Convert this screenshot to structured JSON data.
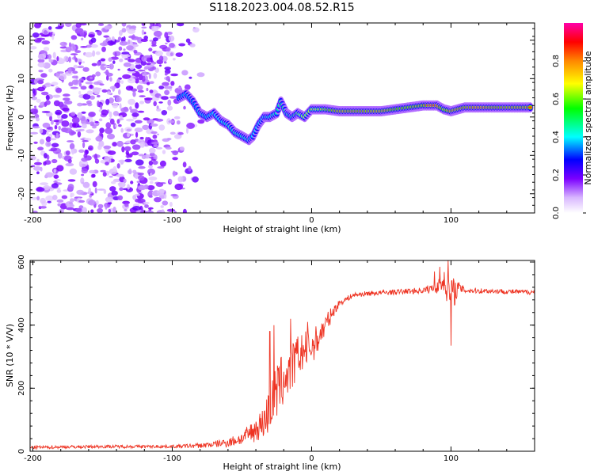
{
  "title": "S118.2023.004.08.52.R15",
  "chart_data": [
    {
      "type": "heatmap",
      "xlabel": "Height of straight line (km)",
      "ylabel": "Frequency (Hz)",
      "xlim": [
        -202,
        160
      ],
      "ylim": [
        -25,
        24.5
      ],
      "x_ticks": [
        -200,
        -100,
        0,
        100
      ],
      "y_ticks": [
        20,
        10,
        0,
        -10,
        -20
      ],
      "colorbar": {
        "label": "Normalized spectral amplitude",
        "range": [
          0,
          1
        ],
        "ticks": [
          0.0,
          0.2,
          0.4,
          0.6,
          0.8
        ],
        "colors": [
          "#ffffff",
          "#7b00ff",
          "#0000ff",
          "#00ffff",
          "#00ff00",
          "#ffff00",
          "#ff8800",
          "#ff0000",
          "#ff00aa"
        ]
      },
      "noise_region_x": [
        -200,
        -75
      ],
      "noise_amplitude_range": [
        0.05,
        0.2
      ],
      "ridge": {
        "description_values": "dominant frequency track (x km, frequency Hz, normalized amplitude)",
        "points": [
          [
            -95,
            5,
            0.3
          ],
          [
            -90,
            6,
            0.35
          ],
          [
            -85,
            4,
            0.3
          ],
          [
            -80,
            1,
            0.35
          ],
          [
            -75,
            0,
            0.35
          ],
          [
            -70,
            1,
            0.4
          ],
          [
            -65,
            -1,
            0.4
          ],
          [
            -60,
            -2,
            0.45
          ],
          [
            -55,
            -4,
            0.45
          ],
          [
            -50,
            -5,
            0.45
          ],
          [
            -45,
            -6,
            0.45
          ],
          [
            -42,
            -5,
            0.4
          ],
          [
            -38,
            -2,
            0.4
          ],
          [
            -34,
            0,
            0.4
          ],
          [
            -30,
            0,
            0.45
          ],
          [
            -25,
            1,
            0.45
          ],
          [
            -22,
            4,
            0.5
          ],
          [
            -18,
            1,
            0.5
          ],
          [
            -14,
            0,
            0.55
          ],
          [
            -10,
            1,
            0.6
          ],
          [
            -5,
            0,
            0.7
          ],
          [
            0,
            2,
            0.7
          ],
          [
            5,
            2,
            0.7
          ],
          [
            10,
            2,
            0.75
          ],
          [
            20,
            1.5,
            0.85
          ],
          [
            30,
            1.5,
            0.85
          ],
          [
            40,
            1.5,
            0.85
          ],
          [
            50,
            1.5,
            0.85
          ],
          [
            60,
            2,
            0.8
          ],
          [
            70,
            2.5,
            0.8
          ],
          [
            80,
            3,
            0.8
          ],
          [
            85,
            3,
            0.9
          ],
          [
            90,
            3,
            0.9
          ],
          [
            95,
            2,
            0.75
          ],
          [
            100,
            1.5,
            0.85
          ],
          [
            110,
            2.5,
            0.85
          ],
          [
            120,
            2.5,
            0.9
          ],
          [
            130,
            2.5,
            0.85
          ],
          [
            140,
            2.5,
            0.85
          ],
          [
            150,
            2.5,
            0.85
          ],
          [
            158,
            2.5,
            0.85
          ]
        ]
      }
    },
    {
      "type": "line",
      "xlabel": "Height of straight line (km)",
      "ylabel": "SNR (10 * V/V)",
      "xlim": [
        -202,
        160
      ],
      "ylim": [
        0,
        605
      ],
      "x_ticks": [
        -200,
        -100,
        0,
        100
      ],
      "y_ticks": [
        0,
        200,
        400,
        600
      ],
      "series": [
        {
          "color": "#ee3322",
          "x": [
            -202,
            -150,
            -100,
            -80,
            -70,
            -60,
            -50,
            -40,
            -35,
            -30,
            -25,
            -20,
            -15,
            -10,
            -5,
            0,
            5,
            10,
            15,
            20,
            30,
            40,
            60,
            80,
            90,
            95,
            100,
            105,
            110,
            130,
            150,
            160
          ],
          "values": [
            12,
            15,
            15,
            18,
            22,
            28,
            40,
            70,
            90,
            130,
            190,
            230,
            260,
            300,
            320,
            330,
            360,
            400,
            440,
            470,
            495,
            500,
            505,
            510,
            520,
            540,
            490,
            520,
            510,
            508,
            505,
            505
          ],
          "noise_amplitude": [
            5,
            5,
            5,
            8,
            10,
            15,
            20,
            40,
            50,
            80,
            90,
            90,
            80,
            70,
            60,
            55,
            45,
            35,
            20,
            10,
            8,
            8,
            8,
            10,
            20,
            30,
            70,
            20,
            10,
            8,
            8,
            8
          ],
          "spikes": [
            [
              -30,
              380
            ],
            [
              -27,
              400
            ],
            [
              -15,
              420
            ],
            [
              -3,
              410
            ],
            [
              88,
              570
            ],
            [
              92,
              585
            ],
            [
              98,
              605
            ],
            [
              100,
              335
            ]
          ]
        }
      ]
    }
  ]
}
